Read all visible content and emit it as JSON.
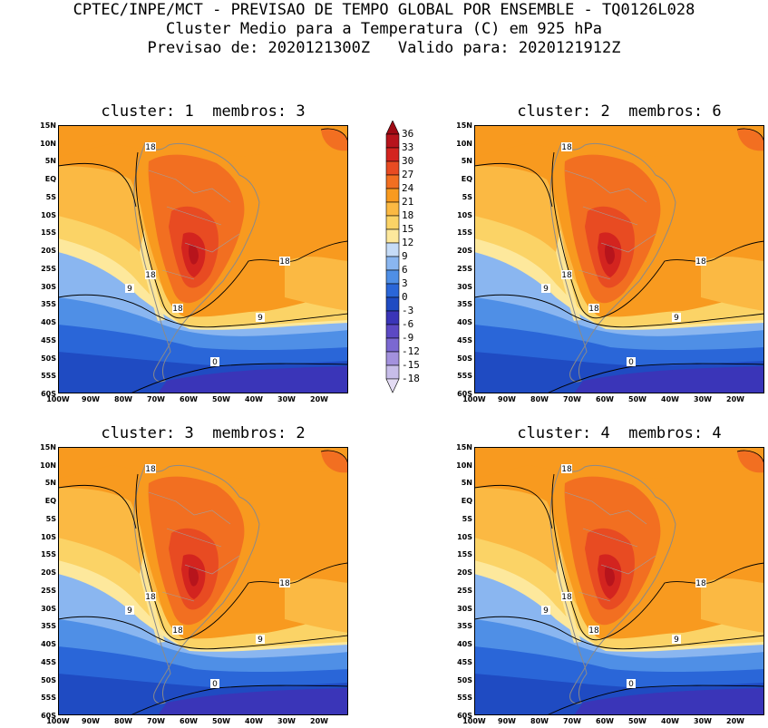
{
  "header": {
    "line1": "CPTEC/INPE/MCT - PREVISAO DE TEMPO GLOBAL POR ENSEMBLE - TQ0126L028",
    "line2": "Cluster Medio para a Temperatura (C) em 925 hPa",
    "line3": "Previsao de: 2020121300Z   Valido para: 2020121912Z"
  },
  "panels": [
    {
      "title": "cluster: 1  membros: 3",
      "labels": [
        "18",
        "18",
        "18",
        "18",
        "9",
        "9",
        "0"
      ]
    },
    {
      "title": "cluster: 2  membros: 6",
      "labels": [
        "18",
        "18",
        "18",
        "18",
        "9",
        "9",
        "0"
      ]
    },
    {
      "title": "cluster: 3  membros: 2",
      "labels": [
        "18",
        "18",
        "18",
        "18",
        "9",
        "9",
        "0"
      ]
    },
    {
      "title": "cluster: 4  membros: 4",
      "labels": [
        "18",
        "18",
        "18",
        "18",
        "9",
        "9",
        "0"
      ]
    }
  ],
  "lat_labels": [
    "15N",
    "10N",
    "5N",
    "EQ",
    "5S",
    "10S",
    "15S",
    "20S",
    "25S",
    "30S",
    "35S",
    "40S",
    "45S",
    "50S",
    "55S",
    "60S"
  ],
  "lon_labels": [
    "100W",
    "90W",
    "80W",
    "70W",
    "60W",
    "50W",
    "40W",
    "30W",
    "20W"
  ],
  "colorbar": {
    "labels": [
      "36",
      "33",
      "30",
      "27",
      "24",
      "21",
      "18",
      "15",
      "12",
      "9",
      "6",
      "3",
      "0",
      "-3",
      "-6",
      "-9",
      "-12",
      "-15",
      "-18"
    ],
    "colors": [
      "#9e0a14",
      "#b7141c",
      "#d3241f",
      "#e84b22",
      "#f26f21",
      "#f89a1f",
      "#fbb943",
      "#fbd366",
      "#fde89c",
      "#c6dcf7",
      "#8ab6f0",
      "#4f8fe6",
      "#2a66d8",
      "#1f4bc2",
      "#3a35b8",
      "#5c49c4",
      "#7b68d1",
      "#a391dd",
      "#c7bde9",
      "#e4dcf4"
    ]
  }
}
